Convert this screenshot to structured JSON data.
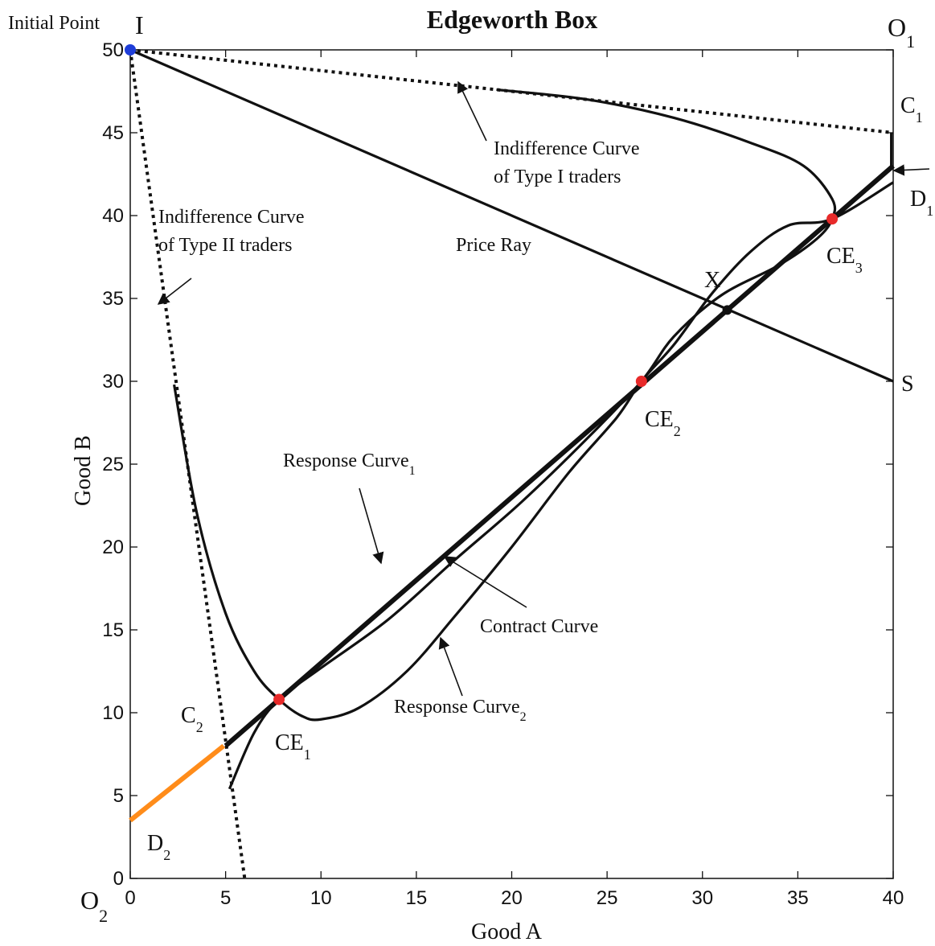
{
  "chart_data": {
    "type": "line",
    "title": "Edgeworth Box",
    "xlabel": "Good A",
    "ylabel": "Good B",
    "xlim": [
      0,
      40
    ],
    "ylim": [
      0,
      50
    ],
    "xticks": [
      0,
      5,
      10,
      15,
      20,
      25,
      30,
      35,
      40
    ],
    "yticks": [
      0,
      5,
      10,
      15,
      20,
      25,
      30,
      35,
      40,
      45,
      50
    ],
    "grid": false,
    "series": [
      {
        "key": "price_ray",
        "style": "solid",
        "points": [
          [
            0,
            50
          ],
          [
            40,
            30
          ]
        ]
      },
      {
        "key": "ic_type1",
        "style": "dotted",
        "points": [
          [
            0,
            50
          ],
          [
            40,
            45
          ]
        ]
      },
      {
        "key": "ic_type2",
        "style": "dotted",
        "points": [
          [
            0,
            50
          ],
          [
            6,
            0
          ]
        ]
      },
      {
        "key": "contract_curve",
        "style": "thick",
        "points": [
          [
            5,
            8
          ],
          [
            40,
            43
          ]
        ]
      },
      {
        "key": "response_curve_1",
        "style": "solid",
        "points": [
          [
            2.3,
            29.8
          ],
          [
            3.5,
            22
          ],
          [
            5,
            16
          ],
          [
            6.5,
            12.5
          ],
          [
            7.8,
            10.8
          ],
          [
            9,
            9.8
          ],
          [
            10,
            9.6
          ],
          [
            12,
            10.3
          ],
          [
            14.5,
            12.5
          ],
          [
            17,
            15.8
          ],
          [
            20,
            20
          ],
          [
            23,
            24.5
          ],
          [
            25.5,
            27.8
          ],
          [
            26.8,
            30
          ],
          [
            28.5,
            32.2
          ],
          [
            30.5,
            35.3
          ],
          [
            32.5,
            37.8
          ],
          [
            34.5,
            39.4
          ],
          [
            36.8,
            39.8
          ],
          [
            40,
            42
          ]
        ]
      },
      {
        "key": "response_curve_2",
        "style": "solid",
        "points": [
          [
            19.2,
            47.6
          ],
          [
            24,
            47
          ],
          [
            28.5,
            45.9
          ],
          [
            32.5,
            44.4
          ],
          [
            35.3,
            43
          ],
          [
            36.8,
            41
          ],
          [
            36.8,
            39.8
          ],
          [
            36,
            38.6
          ],
          [
            34,
            37
          ],
          [
            31,
            35.2
          ],
          [
            28.5,
            32.7
          ],
          [
            26.8,
            30
          ],
          [
            24,
            26.6
          ],
          [
            20.5,
            22.7
          ],
          [
            17,
            19.2
          ],
          [
            13.5,
            15.6
          ],
          [
            10,
            12.7
          ],
          [
            7.8,
            10.8
          ],
          [
            6.5,
            8.8
          ],
          [
            5.2,
            5.4
          ]
        ]
      }
    ],
    "segments": [
      {
        "key": "c1_d1",
        "style": "solid",
        "points": [
          [
            39.9,
            45
          ],
          [
            39.9,
            43
          ]
        ]
      },
      {
        "key": "c2_d2",
        "style": "orange",
        "points": [
          [
            0,
            3.5
          ],
          [
            4.9,
            8
          ]
        ]
      }
    ],
    "points": [
      {
        "key": "initial_point",
        "x": 0,
        "y": 50,
        "color": "#1f3ed8"
      },
      {
        "key": "ce1",
        "x": 7.8,
        "y": 10.8,
        "color": "#e82a2a"
      },
      {
        "key": "ce2",
        "x": 26.8,
        "y": 30,
        "color": "#e82a2a"
      },
      {
        "key": "ce3",
        "x": 36.8,
        "y": 39.8,
        "color": "#e82a2a"
      },
      {
        "key": "x_point",
        "x": 31.3,
        "y": 34.3,
        "color": "#111111"
      }
    ],
    "labels": {
      "initial_point": "Initial Point",
      "I": "I",
      "O1": "O",
      "O1_sub": "1",
      "O2": "O",
      "O2_sub": "2",
      "C1": "C",
      "C1_sub": "1",
      "D1": "D",
      "D1_sub": "1",
      "C2": "C",
      "C2_sub": "2",
      "D2": "D",
      "D2_sub": "2",
      "S": "S",
      "X": "X",
      "CE1": "CE",
      "CE1_sub": "1",
      "CE2": "CE",
      "CE2_sub": "2",
      "CE3": "CE",
      "CE3_sub": "3",
      "ic1_line1": "Indifference Curve",
      "ic1_line2": "of Type I traders",
      "ic2_line1": "Indifference Curve",
      "ic2_line2": "of Type II traders",
      "price_ray": "Price Ray",
      "response1": "Response Curve",
      "response1_sub": "1",
      "response2": "Response Curve",
      "response2_sub": "2",
      "contract": "Contract Curve"
    },
    "colors": {
      "ink": "#111111",
      "orange": "#ff8c1a",
      "blue": "#1f3ed8",
      "red": "#e82a2a"
    }
  }
}
